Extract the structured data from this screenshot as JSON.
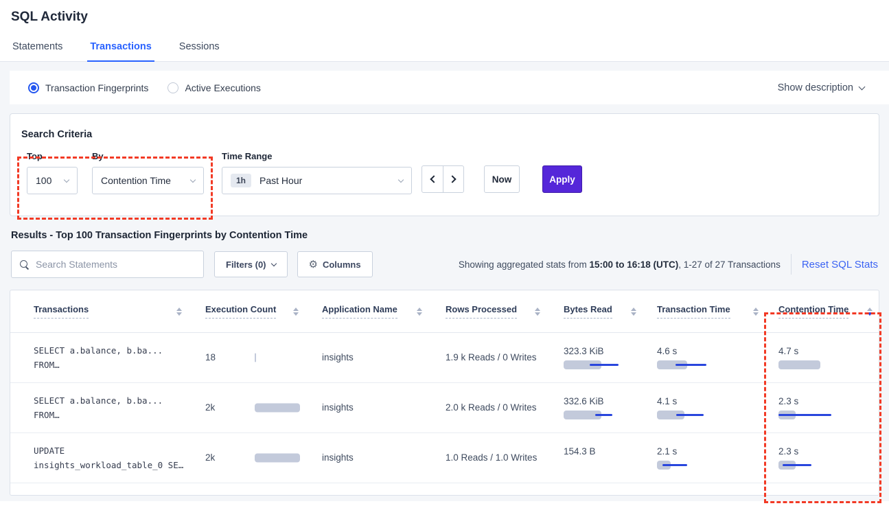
{
  "header": {
    "title": "SQL Activity"
  },
  "tabs": [
    {
      "label": "Statements"
    },
    {
      "label": "Transactions"
    },
    {
      "label": "Sessions"
    }
  ],
  "view_toggle": {
    "fingerprints_label": "Transaction Fingerprints",
    "active_executions_label": "Active Executions",
    "show_description_label": "Show description"
  },
  "search_criteria": {
    "heading": "Search Criteria",
    "top_label": "Top",
    "top_value": "100",
    "by_label": "By",
    "by_value": "Contention Time",
    "time_range_label": "Time Range",
    "time_badge": "1h",
    "time_value": "Past Hour",
    "now_label": "Now",
    "apply_label": "Apply"
  },
  "results": {
    "heading": "Results - Top 100 Transaction Fingerprints by Contention Time",
    "search_placeholder": "Search Statements",
    "filters_label": "Filters (0)",
    "columns_label": "Columns",
    "stats_prefix": "Showing aggregated stats from ",
    "stats_bold": "15:00 to 16:18 (UTC)",
    "stats_suffix": ", 1-27 of 27 Transactions",
    "reset_label": "Reset SQL Stats"
  },
  "table": {
    "columns": [
      "Transactions",
      "Execution Count",
      "Application Name",
      "Rows Processed",
      "Bytes Read",
      "Transaction Time",
      "Contention Time"
    ],
    "sorted_column": "Contention Time",
    "sort_direction": "desc",
    "rows": [
      {
        "query_line1": "SELECT a.balance, b.ba...",
        "query_line2": "FROM…",
        "execution_count": "18",
        "application_name": "insights",
        "rows_processed": "1.9 k Reads / 0 Writes",
        "bytes_read": "323.3 KiB",
        "transaction_time": "4.6 s",
        "contention_time": "4.7 s",
        "bars": {
          "exec": [
            2
          ],
          "bytes": [
            55,
            38,
            42
          ],
          "txn": [
            44,
            27,
            45
          ],
          "cont": [
            61
          ]
        }
      },
      {
        "query_line1": "SELECT a.balance, b.ba...",
        "query_line2": "FROM…",
        "execution_count": "2k",
        "application_name": "insights",
        "rows_processed": "2.0 k Reads / 0 Writes",
        "bytes_read": "332.6 KiB",
        "transaction_time": "4.1 s",
        "contention_time": "2.3 s",
        "bars": {
          "exec": [
            66
          ],
          "bytes": [
            55,
            46,
            25
          ],
          "txn": [
            40,
            28,
            40
          ],
          "cont": [
            25,
            0,
            77
          ]
        }
      },
      {
        "query_line1": "UPDATE",
        "query_line2": "insights_workload_table_0 SE…",
        "execution_count": "2k",
        "application_name": "insights",
        "rows_processed": "1.0 Reads / 1.0 Writes",
        "bytes_read": "154.3 B",
        "transaction_time": "2.1 s",
        "contention_time": "2.3 s",
        "bars": {
          "exec": [
            66
          ],
          "bytes": null,
          "txn": [
            20,
            8,
            36
          ],
          "cont": [
            25,
            6,
            42
          ]
        }
      }
    ]
  },
  "colors": {
    "accent_blue": "#2962ff",
    "bar_gray": "#c3cadb",
    "bar_blue": "#2946dd",
    "apply_purple": "#5527d9",
    "highlight_red": "#f23a25",
    "link_blue": "#3b63f3"
  }
}
